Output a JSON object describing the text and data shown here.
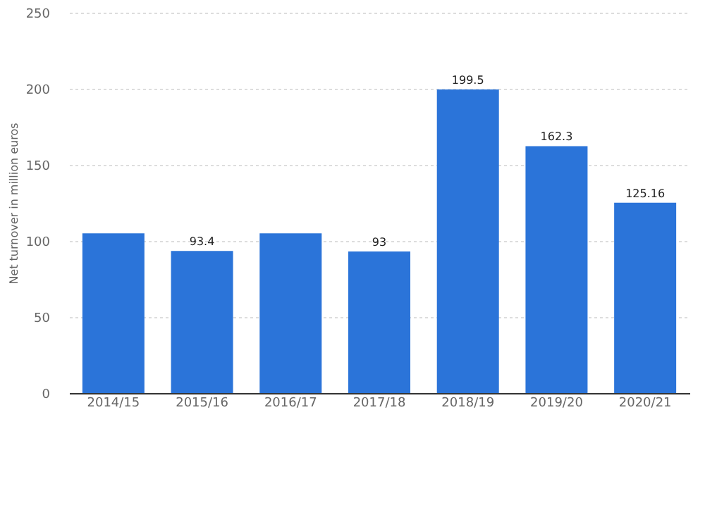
{
  "chart_data": {
    "type": "bar",
    "ylabel": "Net turnover in million euros",
    "categories": [
      "2014/15",
      "2015/16",
      "2016/17",
      "2017/18",
      "2018/19",
      "2019/20",
      "2020/21"
    ],
    "values": [
      105,
      93.4,
      105,
      93,
      199.5,
      162.3,
      125.16
    ],
    "value_labels": [
      null,
      "93.4",
      null,
      "93",
      "199.5",
      "162.3",
      "125.16"
    ],
    "color": "#2b74d9",
    "ylim": [
      0,
      250
    ],
    "yticks": [
      0,
      50,
      100,
      150,
      200,
      250
    ],
    "grid": "y"
  }
}
